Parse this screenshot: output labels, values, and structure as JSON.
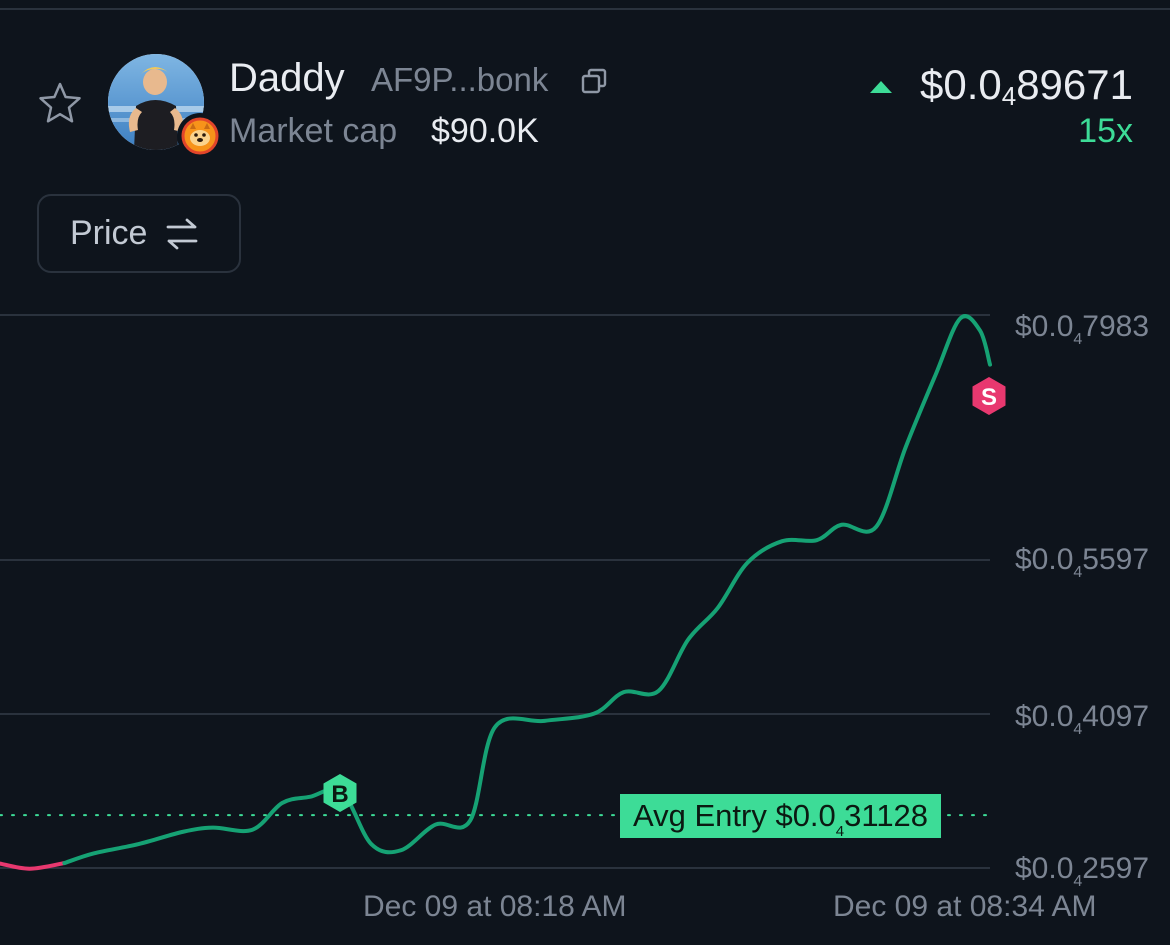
{
  "header": {
    "token_name": "Daddy",
    "token_address": "AF9P...bonk",
    "market_cap_label": "Market cap",
    "market_cap_value": "$90.0K",
    "price_prefix": "$0.0",
    "price_zero_count": "4",
    "price_digits": "89671",
    "multiplier": "15x",
    "price_direction": "up",
    "icons": [
      "star-icon",
      "copy-icon",
      "caret-up-icon",
      "swap-arrows-icon"
    ]
  },
  "toggle": {
    "label": "Price"
  },
  "chart_data": {
    "type": "line",
    "title": "",
    "xlabel": "",
    "ylabel": "",
    "y_ticks": [
      {
        "prefix": "$0.0",
        "zeros": "4",
        "digits": "7983"
      },
      {
        "prefix": "$0.0",
        "zeros": "4",
        "digits": "5597"
      },
      {
        "prefix": "$0.0",
        "zeros": "4",
        "digits": "4097"
      },
      {
        "prefix": "$0.0",
        "zeros": "4",
        "digits": "2597"
      }
    ],
    "x_ticks": [
      "Dec 09 at 08:18 AM",
      "Dec 09 at 08:34 AM"
    ],
    "avg_entry": {
      "label": "Avg Entry",
      "prefix": "$0.0",
      "zeros": "4",
      "digits": "31128"
    },
    "markers": [
      {
        "label": "B",
        "type": "buy"
      },
      {
        "label": "S",
        "type": "sell"
      }
    ],
    "colors": {
      "line": "#16a274",
      "line_pre": "#e8386f",
      "buy": "#3ddc97",
      "sell": "#e8386f",
      "grid": "#2a323d"
    },
    "series": [
      {
        "points_t_value": [
          [
            0.0,
            0.264
          ],
          [
            0.03,
            0.259
          ],
          [
            0.065,
            0.2645
          ],
          [
            0.095,
            0.274
          ],
          [
            0.14,
            0.283
          ],
          [
            0.185,
            0.295
          ],
          [
            0.215,
            0.299
          ],
          [
            0.255,
            0.297
          ],
          [
            0.285,
            0.323
          ],
          [
            0.313,
            0.329
          ],
          [
            0.345,
            0.334
          ],
          [
            0.375,
            0.283
          ],
          [
            0.405,
            0.277
          ],
          [
            0.44,
            0.302
          ],
          [
            0.475,
            0.306
          ],
          [
            0.5,
            0.397
          ],
          [
            0.55,
            0.403
          ],
          [
            0.6,
            0.41
          ],
          [
            0.63,
            0.431
          ],
          [
            0.665,
            0.432
          ],
          [
            0.695,
            0.482
          ],
          [
            0.725,
            0.513
          ],
          [
            0.755,
            0.557
          ],
          [
            0.79,
            0.578
          ],
          [
            0.825,
            0.579
          ],
          [
            0.85,
            0.594
          ],
          [
            0.885,
            0.592
          ],
          [
            0.915,
            0.67
          ],
          [
            0.945,
            0.74
          ],
          [
            0.97,
            0.795
          ],
          [
            0.99,
            0.783
          ],
          [
            1.0,
            0.75
          ]
        ]
      }
    ]
  }
}
